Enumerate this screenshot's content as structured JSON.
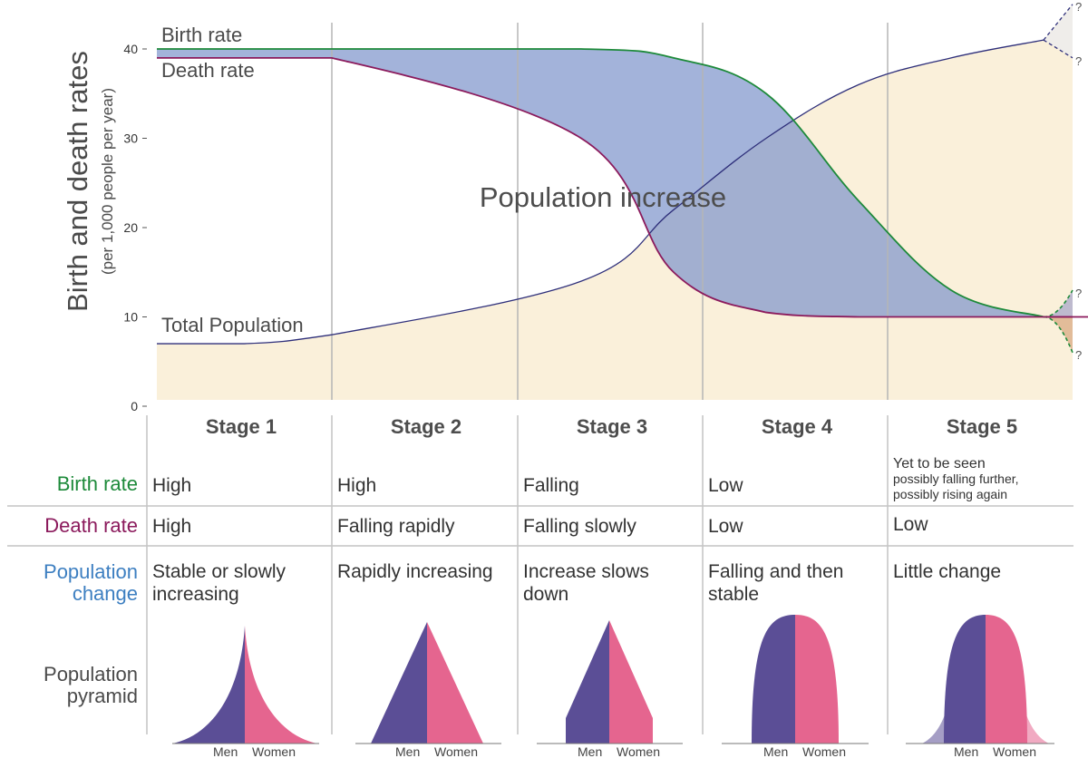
{
  "chart_data": {
    "type": "line",
    "ylabel": "Birth and death rates",
    "ylabel_sub": "(per 1,000 people per year)",
    "ylim": [
      0,
      40
    ],
    "yticks": [
      "0",
      "10",
      "20",
      "30",
      "40"
    ],
    "x": [
      0,
      0.5,
      1,
      1.5,
      2,
      2.5,
      3,
      3.5,
      4,
      4.5,
      5
    ],
    "series": [
      {
        "name": "Birth rate",
        "color": "#1d8a3a",
        "values": [
          40,
          40,
          40,
          40,
          39,
          35,
          23,
          13,
          10,
          null,
          null
        ]
      },
      {
        "name": "Death rate",
        "color": "#8b1a5c",
        "values": [
          39,
          39,
          39,
          30,
          15,
          10.5,
          10,
          10,
          10,
          10,
          10
        ]
      },
      {
        "name": "Total Population",
        "color": "#2e2f7a",
        "values": [
          7,
          7,
          8,
          14,
          22,
          30,
          36,
          39,
          41,
          null,
          null
        ]
      }
    ],
    "projections": {
      "birth_rate_up": [
        10,
        13
      ],
      "birth_rate_down": [
        10,
        6
      ],
      "population_up": [
        41,
        45
      ],
      "population_down": [
        41,
        39
      ]
    },
    "annotations": {
      "region": "Population increase",
      "question_mark": "?"
    }
  },
  "stages": [
    "Stage 1",
    "Stage 2",
    "Stage 3",
    "Stage 4",
    "Stage 5"
  ],
  "rows": {
    "birth": {
      "label": "Birth rate",
      "color": "#1d8a3a",
      "cells": [
        "High",
        "High",
        "Falling",
        "Low",
        "Yet to be seen"
      ],
      "stage5_note_1": "possibly falling further,",
      "stage5_note_2": "possibly rising again"
    },
    "death": {
      "label": "Death rate",
      "color": "#8b1a5c",
      "cells": [
        "High",
        "Falling rapidly",
        "Falling slowly",
        "Low",
        "Low"
      ]
    },
    "change": {
      "label_1": "Population",
      "label_2": "change",
      "color": "#3d7fc1",
      "cells": [
        "Stable or slowly increasing",
        "Rapidly increasing",
        "Increase slows down",
        "Falling and then stable",
        "Little change"
      ]
    },
    "pyramid": {
      "label_1": "Population",
      "label_2": "pyramid",
      "men": "Men",
      "women": "Women",
      "men_color": "#5b4e96",
      "women_color": "#e5658f"
    }
  }
}
